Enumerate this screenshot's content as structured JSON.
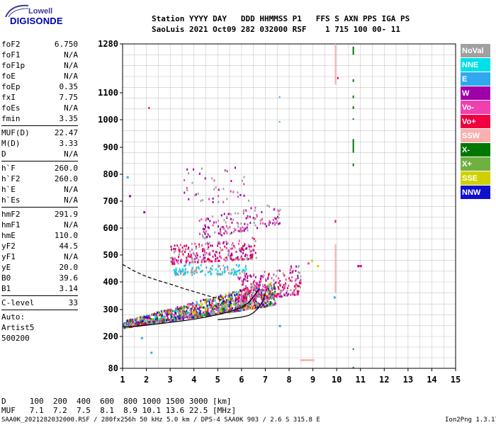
{
  "logo": {
    "top": "Lowell",
    "main": "DIGISONDE"
  },
  "header": {
    "line1": "Station YYYY DAY   DDD HHMMSS P1   FFS S AXN PPS IGA PS",
    "line2": "SaoLuis 2021 Oct09 282 032000 RSF    1 715 100 00- 11"
  },
  "params": [
    {
      "label": "foF2",
      "value": "6.750"
    },
    {
      "label": "foF1",
      "value": "N/A"
    },
    {
      "label": "foF1p",
      "value": "N/A"
    },
    {
      "label": "foE",
      "value": "N/A"
    },
    {
      "label": "foEp",
      "value": "0.35"
    },
    {
      "label": "fxI",
      "value": "7.75"
    },
    {
      "label": "foEs",
      "value": "N/A"
    },
    {
      "label": "fmin",
      "value": "3.35"
    },
    {
      "label": "MUF(D)",
      "value": "22.47"
    },
    {
      "label": "M(D)",
      "value": "3.33"
    },
    {
      "label": "D",
      "value": "N/A"
    },
    {
      "label": "h`F",
      "value": "260.0"
    },
    {
      "label": "h`F2",
      "value": "260.0"
    },
    {
      "label": "h`E",
      "value": "N/A"
    },
    {
      "label": "h`Es",
      "value": "N/A"
    },
    {
      "label": "hmF2",
      "value": "291.9"
    },
    {
      "label": "hmF1",
      "value": "N/A"
    },
    {
      "label": "hmE",
      "value": "110.0"
    },
    {
      "label": "yF2",
      "value": "44.5"
    },
    {
      "label": "yF1",
      "value": "N/A"
    },
    {
      "label": "yE",
      "value": "20.0"
    },
    {
      "label": "B0",
      "value": "39.6"
    },
    {
      "label": "B1",
      "value": "3.14"
    },
    {
      "label": "C-level",
      "value": "33"
    }
  ],
  "auto": {
    "line1": "Auto:",
    "line2": "Artist5",
    "line3": "500200"
  },
  "legend": [
    {
      "label": "NoVal",
      "color": "#a0a0a0"
    },
    {
      "label": "NNE",
      "color": "#00e0e8"
    },
    {
      "label": "E",
      "color": "#30a8f0"
    },
    {
      "label": "W",
      "color": "#a000a8"
    },
    {
      "label": "Vo-",
      "color": "#f040b0"
    },
    {
      "label": "Vo+",
      "color": "#f00040"
    },
    {
      "label": "SSW",
      "color": "#f8b0b0"
    },
    {
      "label": "X-",
      "color": "#007800"
    },
    {
      "label": "X+",
      "color": "#70b040"
    },
    {
      "label": "SSE",
      "color": "#d0d000"
    },
    {
      "label": "NNW",
      "color": "#1010d0"
    }
  ],
  "muf_table": {
    "d_line": "D     100  200  400  600  800 1000 1500 3000 [km]",
    "muf_line": "MUF   7.1  7.2  7.5  8.1  8.9 10.1 13.6 22.5 [MHz]"
  },
  "footer": {
    "left": "SAA0K_2021282032000.RSF / 280fx256h 50 kHz 5.0 km / DPS-4 SAA0K 903 / 2.6 S 315.8 E",
    "right": "Ion2Png 1.3.17"
  },
  "chart_data": {
    "type": "scatter",
    "x_ticks": [
      1,
      2,
      3,
      4,
      5,
      6,
      7,
      8,
      9,
      10,
      11,
      12,
      13,
      14,
      15
    ],
    "y_ticks": [
      80,
      200,
      300,
      400,
      500,
      600,
      700,
      800,
      900,
      1000,
      1100,
      1280
    ],
    "xlim": [
      1,
      15
    ],
    "ylim": [
      80,
      1280
    ],
    "grid": true,
    "y_scale": "nonlinear",
    "traces": [
      {
        "name": "",
        "style": "solid",
        "x": [
          1.0,
          1.5,
          2.0,
          2.5,
          3.0,
          3.5,
          4.0,
          4.5,
          5.0,
          5.5,
          6.0,
          6.3,
          6.5,
          6.7
        ],
        "y": [
          235,
          238,
          242,
          247,
          252,
          258,
          264,
          272,
          281,
          292,
          308,
          325,
          345,
          372
        ]
      },
      {
        "name": "",
        "style": "dashed",
        "x": [
          1.0,
          1.5,
          2.0,
          2.5,
          3.0,
          3.5,
          4.0,
          4.5,
          5.0,
          5.3
        ],
        "y": [
          465,
          440,
          420,
          405,
          392,
          378,
          365,
          352,
          340,
          330
        ]
      },
      {
        "name": "",
        "style": "solid",
        "x": [
          5.0,
          5.5,
          6.0,
          6.3,
          6.5,
          6.7,
          6.9,
          7.0
        ],
        "y": [
          262,
          266,
          272,
          278,
          288,
          305,
          330,
          362
        ]
      }
    ],
    "scatter_regions": [
      {
        "x": [
          1.0,
          7.4
        ],
        "y_low": [
          235,
          320
        ],
        "y_high": [
          260,
          410
        ],
        "density": 1400,
        "colors": [
          "#f040b0",
          "#f00040",
          "#a000a8",
          "#00e0e8",
          "#70b040",
          "#d0d000",
          "#007800",
          "#1010d0",
          "#a0a0a0"
        ]
      },
      {
        "x": [
          3.0,
          6.6
        ],
        "y_low": [
          470,
          490
        ],
        "y_high": [
          540,
          570
        ],
        "density": 260,
        "colors": [
          "#a000a8",
          "#f040b0",
          "#f00040",
          "#a0a0a0"
        ]
      },
      {
        "x": [
          3.1,
          6.2
        ],
        "y_low": [
          430,
          430
        ],
        "y_high": [
          470,
          470
        ],
        "density": 120,
        "colors": [
          "#00e0e8",
          "#30a8f0",
          "#a0a0a0"
        ]
      },
      {
        "x": [
          4.2,
          7.6
        ],
        "y_low": [
          560,
          620
        ],
        "y_high": [
          640,
          700
        ],
        "density": 150,
        "colors": [
          "#a000a8",
          "#f040b0",
          "#a0a0a0"
        ]
      },
      {
        "x": [
          3.5,
          6.3
        ],
        "y_low": [
          700,
          700
        ],
        "y_high": [
          830,
          830
        ],
        "density": 45,
        "colors": [
          "#a000a8",
          "#f040b0",
          "#a0a0a0"
        ]
      },
      {
        "x": [
          5.8,
          8.5
        ],
        "y_low": [
          330,
          360
        ],
        "y_high": [
          430,
          470
        ],
        "density": 260,
        "colors": [
          "#f040b0",
          "#f00040",
          "#a000a8",
          "#a0a0a0"
        ]
      }
    ],
    "vertical_bars": [
      {
        "x": 10.7,
        "y": [
          1240,
          1270
        ],
        "color": "#007800"
      },
      {
        "x": 10.7,
        "y": [
          1140,
          1150
        ],
        "color": "#007800"
      },
      {
        "x": 10.7,
        "y": [
          1080,
          1090
        ],
        "color": "#007800"
      },
      {
        "x": 10.7,
        "y": [
          1040,
          1050
        ],
        "color": "#007800"
      },
      {
        "x": 10.7,
        "y": [
          1000,
          1005
        ],
        "color": "#007800"
      },
      {
        "x": 10.7,
        "y": [
          880,
          930
        ],
        "color": "#007800"
      },
      {
        "x": 10.7,
        "y": [
          830,
          840
        ],
        "color": "#007800"
      },
      {
        "x": 10.7,
        "y": [
          150,
          155
        ],
        "color": "#007800"
      },
      {
        "x": 10.7,
        "y": [
          82,
          86
        ],
        "color": "#007800"
      },
      {
        "x": 9.95,
        "y": [
          1130,
          1290
        ],
        "color": "#f8b0b0"
      },
      {
        "x": 9.95,
        "y": [
          360,
          540
        ],
        "color": "#f8b0b0"
      },
      {
        "x": 9.95,
        "y": [
          620,
          630
        ],
        "color": "#f00040"
      },
      {
        "x": 10.05,
        "y": [
          1150,
          1158
        ],
        "color": "#f00040"
      },
      {
        "x": 7.6,
        "y": [
          990,
          995
        ],
        "color": "#30a8f0"
      },
      {
        "x": 7.6,
        "y": [
          1082,
          1087
        ],
        "color": "#30a8f0"
      }
    ],
    "points": [
      {
        "x": 2.1,
        "y": 1045,
        "color": "#f040b0"
      },
      {
        "x": 1.9,
        "y": 660,
        "color": "#a000a8"
      },
      {
        "x": 1.8,
        "y": 195,
        "color": "#30a8f0"
      },
      {
        "x": 2.2,
        "y": 140,
        "color": "#30a8f0"
      },
      {
        "x": 7.6,
        "y": 240,
        "color": "#30a8f0"
      },
      {
        "x": 9.9,
        "y": 345,
        "color": "#30a8f0"
      },
      {
        "x": 11.0,
        "y": 460,
        "color": "#f00040"
      },
      {
        "x": 10.9,
        "y": 460,
        "color": "#a000a8"
      },
      {
        "x": 1.2,
        "y": 790,
        "color": "#30a8f0"
      },
      {
        "x": 1.3,
        "y": 720,
        "color": "#a000a8"
      },
      {
        "x": 8.5,
        "y": 112,
        "color": "#f8b0b0"
      },
      {
        "x": 8.6,
        "y": 112,
        "color": "#f8b0b0"
      },
      {
        "x": 8.7,
        "y": 112,
        "color": "#f8b0b0"
      },
      {
        "x": 8.8,
        "y": 112,
        "color": "#f8b0b0"
      },
      {
        "x": 8.9,
        "y": 112,
        "color": "#f8b0b0"
      },
      {
        "x": 9.0,
        "y": 112,
        "color": "#f8b0b0"
      },
      {
        "x": 9.2,
        "y": 460,
        "color": "#d0d000"
      },
      {
        "x": 8.8,
        "y": 470,
        "color": "#f040b0"
      },
      {
        "x": 8.95,
        "y": 480,
        "color": "#d0d000"
      }
    ]
  }
}
